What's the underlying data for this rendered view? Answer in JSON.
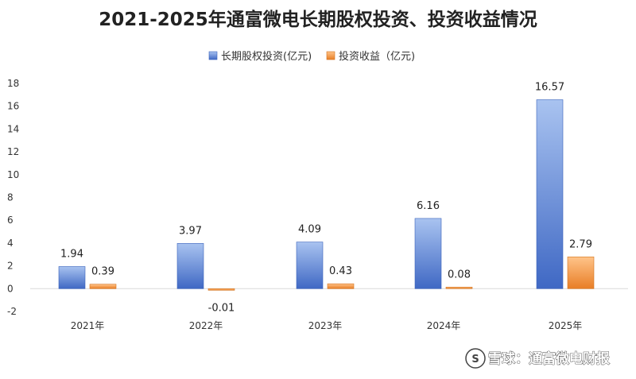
{
  "chart_data": {
    "type": "bar",
    "title": "2021-2025年通富微电长期股权投资、投资收益情况",
    "categories": [
      "2021年",
      "2022年",
      "2023年",
      "2024年",
      "2025年"
    ],
    "series": [
      {
        "name": "长期股权投资(亿元)",
        "values": [
          1.94,
          3.97,
          4.09,
          6.16,
          16.57
        ],
        "color": "#4a74cc"
      },
      {
        "name": "投资收益（亿元)",
        "values": [
          0.39,
          -0.01,
          0.43,
          0.08,
          2.79
        ],
        "color": "#ee8a35"
      }
    ],
    "data_labels": [
      [
        "1.94",
        "3.97",
        "4.09",
        "6.16",
        "16.57"
      ],
      [
        "0.39",
        "-0.01",
        "0.43",
        "0.08",
        "2.79"
      ]
    ],
    "yticks": [
      "-2",
      "0",
      "2",
      "4",
      "6",
      "8",
      "10",
      "12",
      "14",
      "16",
      "18"
    ],
    "ylim": [
      -2,
      18
    ],
    "grid": false,
    "legend_position": "top-center"
  },
  "watermark": {
    "text": "雪球：通富微电财报"
  }
}
